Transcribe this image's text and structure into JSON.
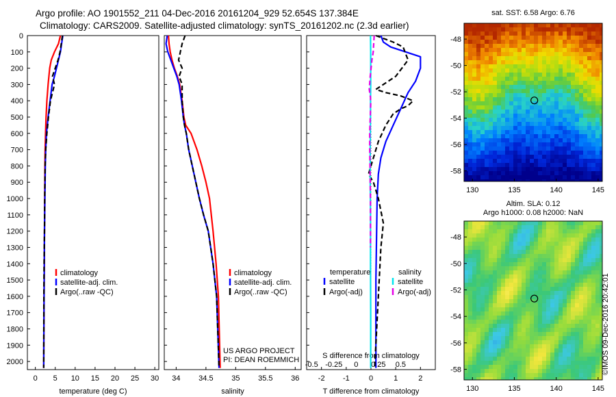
{
  "title_line1": "Argo profile: AO 1901552_211 04-Dec-2016 20161204_929 52.654S 137.384E",
  "title_line2": "Climatology: CARS2009. Satellite-adjusted climatology: synTS_20161202.nc (2.3d earlier)",
  "depth_ticks": [
    0,
    100,
    200,
    300,
    400,
    500,
    600,
    700,
    800,
    900,
    1000,
    1100,
    1200,
    1300,
    1400,
    1500,
    1600,
    1700,
    1800,
    1900,
    2000
  ],
  "colors": {
    "climatology": "#ff0000",
    "satellite": "#0000ff",
    "argo": "#000000",
    "s_sat": "#00e5ee",
    "s_argo": "#e600e6"
  },
  "chart_data": [
    {
      "type": "line",
      "xlabel": "temperature (deg C)",
      "xlim": [
        -2,
        31
      ],
      "ylim": [
        0,
        2050
      ],
      "y_reversed": true,
      "xticks": [
        0,
        5,
        10,
        15,
        20,
        25,
        30
      ],
      "legend": [
        "climatology",
        "satellite-adj. clim.",
        "Argo(..raw -QC)"
      ],
      "series": [
        {
          "name": "climatology",
          "color": "#ff0000",
          "x": [
            6.3,
            5.8,
            4.8,
            4.0,
            3.6,
            3.2,
            2.9,
            2.7,
            2.55,
            2.45,
            2.4,
            2.35,
            2.3,
            2.25,
            2.2,
            2.15,
            2.1
          ],
          "y": [
            0,
            50,
            100,
            150,
            200,
            300,
            400,
            500,
            600,
            700,
            800,
            1000,
            1200,
            1400,
            1600,
            1800,
            2040
          ]
        },
        {
          "name": "satellite-adj. clim.",
          "color": "#0000ff",
          "x": [
            6.9,
            6.6,
            6.3,
            5.8,
            5.3,
            4.8,
            4.2,
            3.7,
            3.2,
            2.8,
            2.6,
            2.5,
            2.4,
            2.3,
            2.25,
            2.2,
            2.15,
            2.1
          ],
          "y": [
            0,
            50,
            100,
            150,
            200,
            250,
            300,
            400,
            500,
            600,
            700,
            800,
            1000,
            1200,
            1400,
            1600,
            1800,
            2040
          ]
        },
        {
          "name": "Argo(..raw -QC)",
          "color": "#000000",
          "dashed": true,
          "x": [
            6.8,
            6.5,
            6.2,
            5.7,
            5.0,
            4.3,
            4.8,
            3.8,
            3.3,
            2.9,
            2.6,
            2.45,
            2.35,
            2.3,
            2.2,
            2.15,
            2.1
          ],
          "y": [
            0,
            50,
            100,
            150,
            200,
            250,
            300,
            400,
            500,
            600,
            700,
            800,
            1000,
            1200,
            1400,
            1600,
            2040
          ]
        }
      ]
    },
    {
      "type": "line",
      "xlabel": "salinity",
      "xlim": [
        33.8,
        36.1
      ],
      "ylim": [
        0,
        2050
      ],
      "y_reversed": true,
      "xticks": [
        34,
        34.5,
        35,
        35.5,
        36
      ],
      "legend": [
        "climatology",
        "satellite-adj. clim.",
        "Argo(..raw -QC)"
      ],
      "series": [
        {
          "name": "climatology",
          "color": "#ff0000",
          "x": [
            33.87,
            33.88,
            33.9,
            33.93,
            33.97,
            34.02,
            34.06,
            34.1,
            34.13,
            34.16,
            34.25,
            34.35,
            34.43,
            34.5,
            34.56,
            34.62,
            34.67,
            34.71,
            34.74
          ],
          "y": [
            0,
            50,
            100,
            150,
            200,
            250,
            300,
            400,
            500,
            550,
            600,
            700,
            800,
            900,
            1000,
            1200,
            1400,
            1600,
            2040
          ]
        },
        {
          "name": "satellite-adj. clim.",
          "color": "#0000ff",
          "x": [
            33.85,
            33.83,
            33.86,
            33.91,
            33.96,
            34.01,
            34.05,
            34.09,
            34.12,
            34.14,
            34.17,
            34.21,
            34.27,
            34.33,
            34.39,
            34.46,
            34.54,
            34.62,
            34.68,
            34.72
          ],
          "y": [
            0,
            50,
            100,
            150,
            200,
            250,
            300,
            400,
            500,
            550,
            600,
            700,
            800,
            900,
            1000,
            1100,
            1200,
            1400,
            1600,
            2040
          ]
        },
        {
          "name": "Argo(..raw -QC)",
          "color": "#000000",
          "dashed": true,
          "x": [
            34.15,
            34.1,
            34.07,
            34.04,
            34.1,
            34.05,
            34.1,
            34.1,
            34.12,
            34.14,
            34.17,
            34.21,
            34.27,
            34.33,
            34.39,
            34.46,
            34.54,
            34.62,
            34.68,
            34.72
          ],
          "y": [
            0,
            50,
            100,
            150,
            200,
            250,
            300,
            400,
            500,
            550,
            600,
            700,
            800,
            900,
            1000,
            1100,
            1200,
            1400,
            1600,
            2040
          ]
        }
      ]
    },
    {
      "type": "line",
      "xlabel": "T difference from climatology",
      "xlabel2": "S difference from climatology",
      "xlim": [
        -2.6,
        2.6
      ],
      "ylim": [
        0,
        2050
      ],
      "y_reversed": true,
      "xticks": [
        -2,
        -1,
        0,
        1,
        2
      ],
      "xticks2": [
        "-0.5",
        "-0.25",
        "0",
        "0.25",
        "0.5"
      ],
      "legend_headers": [
        "temperature",
        "salinity"
      ],
      "legend": [
        "satellite",
        "Argo(-adj)",
        "satellite",
        "Argo(-adj)"
      ],
      "series": [
        {
          "name": "temperature satellite",
          "color": "#0000ff",
          "x": [
            0.4,
            0.5,
            0.8,
            1.4,
            2.0,
            2.0,
            1.8,
            1.5,
            1.2,
            0.9,
            0.6,
            0.4,
            0.3,
            0.25,
            0.2,
            0.2
          ],
          "y": [
            0,
            40,
            70,
            100,
            130,
            200,
            280,
            350,
            450,
            550,
            650,
            750,
            850,
            1000,
            1500,
            2040
          ]
        },
        {
          "name": "temperature Argo(-adj)",
          "color": "#000000",
          "dashed": true,
          "x": [
            0.2,
            0.9,
            1.3,
            1.5,
            1.0,
            0.5,
            0.2,
            0.6,
            1.2,
            1.7,
            1.5,
            1.2,
            0.9,
            0.6,
            0.3,
            0.1,
            -0.1,
            0.1,
            0.3,
            0.5,
            0.4,
            0.15
          ],
          "y": [
            0,
            40,
            70,
            150,
            250,
            300,
            330,
            350,
            370,
            400,
            430,
            450,
            480,
            550,
            650,
            750,
            850,
            900,
            1000,
            1150,
            1300,
            2040
          ]
        },
        {
          "name": "salinity satellite",
          "color": "#00e5ee",
          "x": [
            -0.02,
            -0.01,
            -0.01,
            -0.01,
            -0.02,
            -0.02,
            -0.03,
            -0.03,
            -0.02,
            -0.02,
            -0.01,
            -0.01
          ],
          "y": [
            0,
            100,
            200,
            300,
            400,
            500,
            700,
            900,
            1100,
            1400,
            1700,
            2040
          ]
        },
        {
          "name": "salinity Argo(-adj)",
          "color": "#e600e6",
          "dashed": true,
          "x": [
            0.13,
            0.11,
            0.09,
            0.04,
            -0.03,
            -0.07,
            -0.02,
            -0.01,
            -0.05,
            -0.05,
            -0.04,
            -0.03,
            -0.02,
            -0.02
          ],
          "y": [
            0,
            50,
            100,
            150,
            250,
            330,
            380,
            420,
            600,
            700,
            800,
            900,
            1000,
            1300
          ]
        }
      ]
    },
    {
      "type": "heatmap",
      "title": "sat. SST: 6.58 Argo: 6.76",
      "xlim": [
        129,
        145.5
      ],
      "ylim": [
        -58.8,
        -46.8
      ],
      "xticks": [
        130,
        135,
        140,
        145
      ],
      "yticks": [
        -48,
        -50,
        -52,
        -54,
        -56,
        -58
      ],
      "marker": {
        "lon": 137.384,
        "lat": -52.654
      }
    },
    {
      "type": "heatmap",
      "title": "Altim. SLA: 0.12",
      "title2": "Argo h1000: 0.08 h2000: NaN",
      "xlim": [
        129,
        145.5
      ],
      "ylim": [
        -58.8,
        -46.8
      ],
      "xticks": [
        130,
        135,
        140,
        145
      ],
      "yticks": [
        -48,
        -50,
        -52,
        -54,
        -56,
        -58
      ],
      "marker": {
        "lon": 137.384,
        "lat": -52.654
      }
    }
  ],
  "annotation_project": "US ARGO PROJECT",
  "annotation_pi": "PI: DEAN ROEMMICH",
  "credit": "©IMOS 09-Dec-2016 20:42:01"
}
